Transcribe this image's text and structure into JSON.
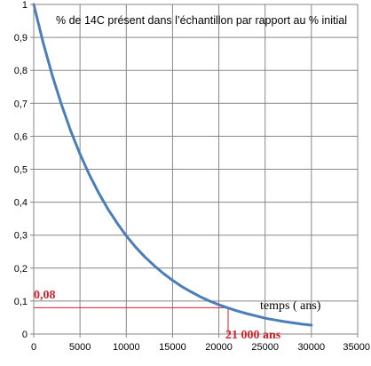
{
  "chart_data": {
    "type": "line",
    "title": "% de 14C présent dans l’échantillon par rapport au % initial",
    "xlabel": "temps ( ans)",
    "ylabel": "",
    "xlim": [
      0,
      35000
    ],
    "ylim": [
      0,
      1
    ],
    "x_ticks": [
      "0",
      "5000",
      "10000",
      "15000",
      "20000",
      "25000",
      "30000",
      "35000"
    ],
    "y_ticks": [
      "0",
      "0,1",
      "0,2",
      "0,3",
      "0,4",
      "0,5",
      "0,6",
      "0,7",
      "0,8",
      "0,9",
      "1"
    ],
    "grid": true,
    "series": [
      {
        "color": "#4a7ebb",
        "x": [
          0,
          1000,
          2000,
          3000,
          4000,
          5000,
          6000,
          7000,
          8000,
          9000,
          10000,
          11000,
          12000,
          13000,
          14000,
          15000,
          16000,
          17000,
          18000,
          19000,
          20000,
          21000,
          22000,
          23000,
          24000,
          25000,
          26000,
          27000,
          28000,
          29000,
          30000
        ],
        "y": [
          1.0,
          0.886,
          0.785,
          0.696,
          0.616,
          0.546,
          0.484,
          0.429,
          0.38,
          0.337,
          0.298,
          0.264,
          0.234,
          0.208,
          0.184,
          0.163,
          0.144,
          0.128,
          0.113,
          0.1,
          0.089,
          0.079,
          0.07,
          0.062,
          0.055,
          0.048,
          0.043,
          0.038,
          0.034,
          0.03,
          0.027
        ]
      }
    ],
    "annotation": {
      "y_value": 0.08,
      "y_label": "0,08",
      "x_value": 21000,
      "x_label": "21 000 ans",
      "color": "#d4202a"
    }
  }
}
